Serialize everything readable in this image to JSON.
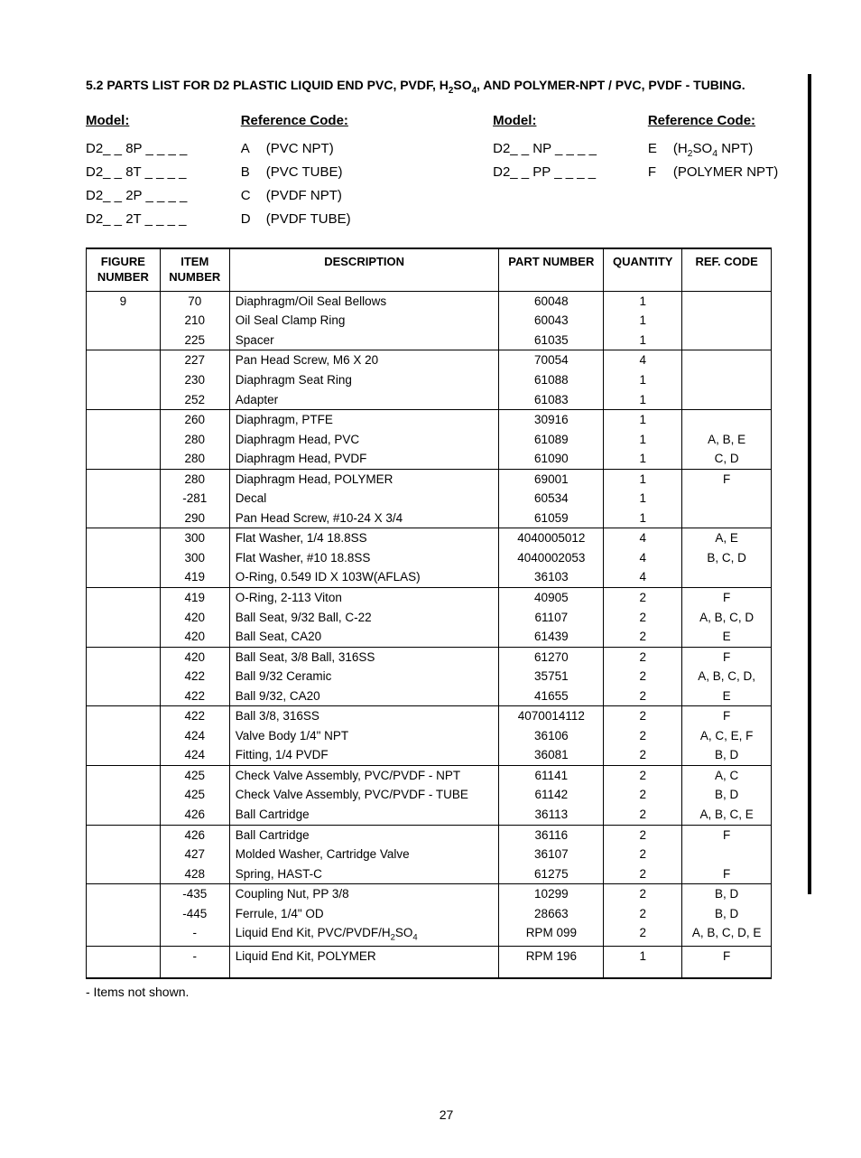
{
  "section_title_html": "5.2 PARTS LIST FOR D2 PLASTIC LIQUID END PVC, PVDF, H<sub>2</sub>SO<sub>4</sub>, AND POLYMER-NPT / PVC, PVDF - TUBING.",
  "headers": {
    "model": "Model:",
    "refcode": "Reference Code:"
  },
  "models_left": [
    "D2_ _ 8P _ _ _ _",
    "D2_ _ 8T _ _ _ _",
    "D2_ _ 2P _ _ _ _",
    "D2_ _ 2T _ _ _ _"
  ],
  "codes_left": [
    {
      "l": "A",
      "t": "(PVC NPT)"
    },
    {
      "l": "B",
      "t": "(PVC TUBE)"
    },
    {
      "l": "C",
      "t": "(PVDF NPT)"
    },
    {
      "l": "D",
      "t": "(PVDF TUBE)"
    }
  ],
  "models_right": [
    "D2_ _ NP _ _ _ _",
    "D2_ _ PP _ _ _ _"
  ],
  "codes_right": [
    {
      "l": "E",
      "t_html": "(H<sub>2</sub>SO<sub>4</sub> NPT)"
    },
    {
      "l": "F",
      "t": "(POLYMER NPT)"
    }
  ],
  "table_headers": {
    "fig": "FIGURE NUMBER",
    "item": "ITEM NUMBER",
    "desc": "DESCRIPTION",
    "part": "PART NUMBER",
    "qty": "QUANTITY",
    "ref": "REF. CODE"
  },
  "rows": [
    {
      "sep": true,
      "fig": "9",
      "item": "70",
      "desc": "Diaphragm/Oil Seal Bellows",
      "part": "60048",
      "qty": "1",
      "ref": ""
    },
    {
      "fig": "",
      "item": "210",
      "desc": "Oil Seal Clamp Ring",
      "part": "60043",
      "qty": "1",
      "ref": ""
    },
    {
      "fig": "",
      "item": "225",
      "desc": "Spacer",
      "part": "61035",
      "qty": "1",
      "ref": ""
    },
    {
      "sep": true,
      "fig": "",
      "item": "227",
      "desc": "Pan Head Screw, M6 X 20",
      "part": "70054",
      "qty": "4",
      "ref": ""
    },
    {
      "fig": "",
      "item": "230",
      "desc": "Diaphragm Seat Ring",
      "part": "61088",
      "qty": "1",
      "ref": ""
    },
    {
      "fig": "",
      "item": "252",
      "desc": "Adapter",
      "part": "61083",
      "qty": "1",
      "ref": ""
    },
    {
      "sep": true,
      "fig": "",
      "item": "260",
      "desc": "Diaphragm, PTFE",
      "part": "30916",
      "qty": "1",
      "ref": ""
    },
    {
      "fig": "",
      "item": "280",
      "desc": "Diaphragm Head, PVC",
      "part": "61089",
      "qty": "1",
      "ref": "A, B, E"
    },
    {
      "fig": "",
      "item": "280",
      "desc": "Diaphragm Head, PVDF",
      "part": "61090",
      "qty": "1",
      "ref": "C, D"
    },
    {
      "sep": true,
      "fig": "",
      "item": "280",
      "desc": "Diaphragm Head, POLYMER",
      "part": "69001",
      "qty": "1",
      "ref": "F"
    },
    {
      "fig": "",
      "item": "-281",
      "desc": "Decal",
      "part": "60534",
      "qty": "1",
      "ref": ""
    },
    {
      "fig": "",
      "item": "290",
      "desc": "Pan Head Screw, #10-24 X 3/4",
      "part": "61059",
      "qty": "1",
      "ref": ""
    },
    {
      "sep": true,
      "fig": "",
      "item": "300",
      "desc": "Flat Washer, 1/4 18.8SS",
      "part": "4040005012",
      "qty": "4",
      "ref": "A, E"
    },
    {
      "fig": "",
      "item": "300",
      "desc": "Flat Washer, #10 18.8SS",
      "part": "4040002053",
      "qty": "4",
      "ref": "B, C, D"
    },
    {
      "fig": "",
      "item": "419",
      "desc": "O-Ring, 0.549 ID X 103W(AFLAS)",
      "part": "36103",
      "qty": "4",
      "ref": ""
    },
    {
      "sep": true,
      "fig": "",
      "item": "419",
      "desc": "O-Ring, 2-113 Viton",
      "part": "40905",
      "qty": "2",
      "ref": "F"
    },
    {
      "fig": "",
      "item": "420",
      "desc": "Ball Seat, 9/32 Ball, C-22",
      "part": "61107",
      "qty": "2",
      "ref": "A, B, C, D"
    },
    {
      "fig": "",
      "item": "420",
      "desc": "Ball Seat, CA20",
      "part": "61439",
      "qty": "2",
      "ref": "E"
    },
    {
      "sep": true,
      "fig": "",
      "item": "420",
      "desc": "Ball Seat, 3/8 Ball, 316SS",
      "part": "61270",
      "qty": "2",
      "ref": "F"
    },
    {
      "fig": "",
      "item": "422",
      "desc": "Ball 9/32 Ceramic",
      "part": "35751",
      "qty": "2",
      "ref": "A, B, C, D,"
    },
    {
      "fig": "",
      "item": "422",
      "desc": "Ball 9/32, CA20",
      "part": "41655",
      "qty": "2",
      "ref": "E"
    },
    {
      "sep": true,
      "fig": "",
      "item": "422",
      "desc": "Ball 3/8, 316SS",
      "part": "4070014112",
      "qty": "2",
      "ref": "F"
    },
    {
      "fig": "",
      "item": "424",
      "desc": "Valve Body 1/4\" NPT",
      "part": "36106",
      "qty": "2",
      "ref": "A, C, E, F"
    },
    {
      "fig": "",
      "item": "424",
      "desc": "Fitting, 1/4 PVDF",
      "part": "36081",
      "qty": "2",
      "ref": "B, D"
    },
    {
      "sep": true,
      "fig": "",
      "item": "425",
      "desc": "Check Valve Assembly, PVC/PVDF - NPT",
      "part": "61141",
      "qty": "2",
      "ref": "A, C"
    },
    {
      "fig": "",
      "item": "425",
      "desc": "Check Valve Assembly, PVC/PVDF - TUBE",
      "part": "61142",
      "qty": "2",
      "ref": "B, D"
    },
    {
      "fig": "",
      "item": "426",
      "desc": "Ball Cartridge",
      "part": "36113",
      "qty": "2",
      "ref": "A, B, C, E"
    },
    {
      "sep": true,
      "fig": "",
      "item": "426",
      "desc": "Ball Cartridge",
      "part": "36116",
      "qty": "2",
      "ref": "F"
    },
    {
      "fig": "",
      "item": "427",
      "desc": "Molded Washer, Cartridge Valve",
      "part": "36107",
      "qty": "2",
      "ref": ""
    },
    {
      "fig": "",
      "item": "428",
      "desc": "Spring, HAST-C",
      "part": "61275",
      "qty": "2",
      "ref": "F"
    },
    {
      "sep": true,
      "fig": "",
      "item": "-435",
      "desc": "Coupling Nut, PP 3/8",
      "part": "10299",
      "qty": "2",
      "ref": "B, D"
    },
    {
      "fig": "",
      "item": "-445",
      "desc": "Ferrule, 1/4\" OD",
      "part": "28663",
      "qty": "2",
      "ref": "B, D"
    },
    {
      "fig": "",
      "item": "-",
      "desc_html": "Liquid End Kit, PVC/PVDF/H<sub>2</sub>SO<sub>4</sub>",
      "part": "RPM 099",
      "qty": "2",
      "ref": "A, B, C, D, E"
    },
    {
      "sep": true,
      "last": true,
      "fig": "",
      "item": "-",
      "desc": "Liquid End Kit, POLYMER",
      "part": "RPM 196",
      "qty": "1",
      "ref": "F"
    }
  ],
  "footnote": "-  Items not shown.",
  "page_number": "27"
}
